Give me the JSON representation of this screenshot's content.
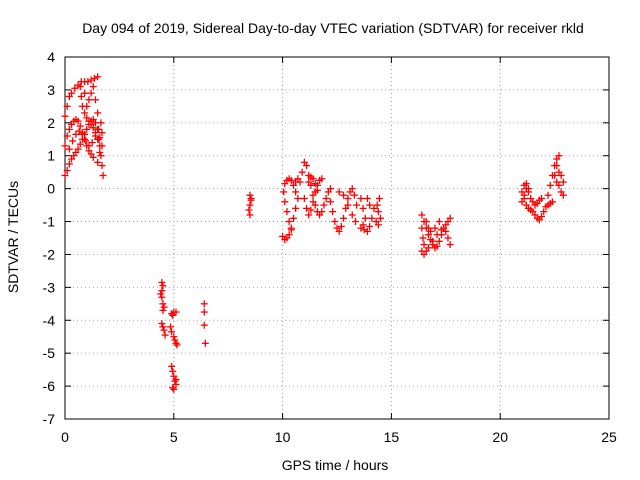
{
  "chart_data": {
    "type": "scatter",
    "title": "Day 094 of 2019, Sidereal Day-to-day VTEC variation (SDTVAR) for receiver rkld",
    "xlabel": "GPS time / hours",
    "ylabel": "SDTVAR / TECUs",
    "xlim": [
      0,
      25
    ],
    "ylim": [
      -7,
      4
    ],
    "xticks": [
      "0",
      "5",
      "10",
      "15",
      "20",
      "25"
    ],
    "yticks": [
      "4",
      "3",
      "2",
      "1",
      "0",
      "-1",
      "-2",
      "-3",
      "-4",
      "-5",
      "-6",
      "-7"
    ],
    "grid": true,
    "marker": "plus",
    "marker_color": "#ff0000",
    "series": [
      {
        "name": "SDTVAR",
        "points": [
          [
            0.0,
            2.2
          ],
          [
            0.1,
            2.5
          ],
          [
            0.2,
            2.8
          ],
          [
            0.3,
            2.9
          ],
          [
            0.45,
            3.05
          ],
          [
            0.6,
            3.15
          ],
          [
            0.75,
            3.25
          ],
          [
            0.9,
            3.25
          ],
          [
            1.05,
            3.25
          ],
          [
            1.2,
            3.3
          ],
          [
            1.35,
            3.35
          ],
          [
            1.5,
            3.4
          ],
          [
            0.7,
            3.1
          ],
          [
            0.75,
            2.8
          ],
          [
            0.8,
            2.5
          ],
          [
            0.9,
            2.3
          ],
          [
            1.0,
            2.15
          ],
          [
            1.1,
            2.05
          ],
          [
            1.2,
            1.95
          ],
          [
            1.3,
            1.85
          ],
          [
            1.4,
            1.7
          ],
          [
            1.5,
            1.5
          ],
          [
            1.6,
            1.3
          ],
          [
            1.65,
            1.0
          ],
          [
            1.7,
            0.7
          ],
          [
            1.75,
            0.4
          ],
          [
            0.0,
            1.3
          ],
          [
            0.1,
            1.6
          ],
          [
            0.2,
            1.8
          ],
          [
            0.3,
            1.95
          ],
          [
            0.4,
            2.05
          ],
          [
            0.5,
            2.1
          ],
          [
            0.6,
            2.05
          ],
          [
            0.7,
            1.9
          ],
          [
            0.8,
            1.7
          ],
          [
            0.9,
            1.5
          ],
          [
            1.0,
            1.3
          ],
          [
            1.1,
            1.15
          ],
          [
            1.2,
            1.05
          ],
          [
            1.3,
            0.95
          ],
          [
            0.0,
            0.4
          ],
          [
            0.1,
            0.55
          ],
          [
            0.2,
            0.75
          ],
          [
            0.3,
            0.9
          ],
          [
            0.4,
            1.0
          ],
          [
            0.5,
            1.1
          ],
          [
            0.6,
            1.2
          ],
          [
            0.7,
            1.35
          ],
          [
            0.8,
            1.5
          ],
          [
            0.9,
            1.65
          ],
          [
            1.0,
            1.8
          ],
          [
            1.1,
            1.95
          ],
          [
            1.2,
            2.05
          ],
          [
            1.3,
            2.1
          ],
          [
            1.4,
            2.0
          ],
          [
            1.5,
            1.8
          ],
          [
            1.6,
            1.55
          ],
          [
            1.7,
            1.3
          ],
          [
            0.2,
            1.2
          ],
          [
            0.35,
            1.45
          ],
          [
            0.5,
            1.65
          ],
          [
            0.65,
            1.75
          ],
          [
            0.8,
            1.65
          ],
          [
            0.95,
            1.45
          ],
          [
            1.1,
            1.3
          ],
          [
            1.25,
            1.4
          ],
          [
            1.4,
            1.6
          ],
          [
            1.55,
            1.8
          ],
          [
            1.65,
            2.0
          ],
          [
            1.7,
            1.7
          ],
          [
            1.6,
            1.1
          ],
          [
            1.5,
            0.8
          ],
          [
            1.0,
            2.5
          ],
          [
            1.1,
            2.7
          ],
          [
            1.2,
            2.9
          ],
          [
            1.3,
            3.1
          ],
          [
            1.4,
            2.7
          ],
          [
            1.5,
            2.3
          ],
          [
            1.55,
            1.5
          ],
          [
            0.9,
            2.9
          ],
          [
            4.45,
            -2.85
          ],
          [
            4.5,
            -2.95
          ],
          [
            4.45,
            -3.1
          ],
          [
            4.4,
            -3.2
          ],
          [
            4.45,
            -3.3
          ],
          [
            4.5,
            -3.5
          ],
          [
            4.55,
            -3.6
          ],
          [
            4.5,
            -3.7
          ],
          [
            4.45,
            -4.1
          ],
          [
            4.5,
            -4.2
          ],
          [
            4.55,
            -4.3
          ],
          [
            4.6,
            -4.45
          ],
          [
            4.9,
            -3.8
          ],
          [
            5.0,
            -3.75
          ],
          [
            5.1,
            -3.75
          ],
          [
            4.95,
            -3.85
          ],
          [
            4.85,
            -4.2
          ],
          [
            4.9,
            -4.35
          ],
          [
            5.0,
            -4.5
          ],
          [
            5.05,
            -4.6
          ],
          [
            5.1,
            -4.7
          ],
          [
            5.15,
            -4.75
          ],
          [
            4.9,
            -5.4
          ],
          [
            4.95,
            -5.55
          ],
          [
            5.0,
            -5.7
          ],
          [
            5.05,
            -5.85
          ],
          [
            5.1,
            -5.95
          ],
          [
            5.0,
            -6.1
          ],
          [
            4.95,
            -6.05
          ],
          [
            5.1,
            -5.8
          ],
          [
            6.4,
            -3.5
          ],
          [
            6.4,
            -3.75
          ],
          [
            6.4,
            -4.15
          ],
          [
            6.45,
            -4.7
          ],
          [
            8.5,
            -0.2
          ],
          [
            8.55,
            -0.35
          ],
          [
            8.5,
            -0.5
          ],
          [
            8.45,
            -0.65
          ],
          [
            8.5,
            -0.8
          ],
          [
            8.55,
            -0.3
          ],
          [
            10.0,
            -1.45
          ],
          [
            10.1,
            -1.55
          ],
          [
            10.2,
            -1.5
          ],
          [
            10.3,
            -1.4
          ],
          [
            10.4,
            -1.2
          ],
          [
            10.5,
            -0.9
          ],
          [
            10.6,
            -0.6
          ],
          [
            10.7,
            -0.3
          ],
          [
            10.6,
            -0.1
          ],
          [
            10.5,
            0.1
          ],
          [
            10.4,
            0.25
          ],
          [
            10.3,
            0.3
          ],
          [
            10.2,
            0.25
          ],
          [
            10.1,
            0.15
          ],
          [
            10.05,
            -0.1
          ],
          [
            10.1,
            -0.4
          ],
          [
            10.2,
            -0.7
          ],
          [
            10.3,
            -1.0
          ],
          [
            10.4,
            -1.25
          ],
          [
            10.6,
            0.2
          ],
          [
            10.7,
            0.3
          ],
          [
            10.8,
            0.2
          ],
          [
            10.9,
            0.5
          ],
          [
            11.0,
            0.8
          ],
          [
            11.1,
            0.7
          ],
          [
            11.2,
            0.4
          ],
          [
            11.3,
            0.1
          ],
          [
            11.4,
            -0.2
          ],
          [
            11.5,
            -0.5
          ],
          [
            11.6,
            -0.7
          ],
          [
            11.7,
            -0.8
          ],
          [
            11.8,
            -0.7
          ],
          [
            11.9,
            -0.5
          ],
          [
            12.0,
            -0.3
          ],
          [
            12.1,
            -0.1
          ],
          [
            12.2,
            0.0
          ],
          [
            11.0,
            -0.3
          ],
          [
            11.1,
            -0.6
          ],
          [
            11.2,
            -0.8
          ],
          [
            11.3,
            -0.65
          ],
          [
            11.4,
            -0.4
          ],
          [
            11.5,
            -0.1
          ],
          [
            11.6,
            0.1
          ],
          [
            11.7,
            0.25
          ],
          [
            11.8,
            0.3
          ],
          [
            11.2,
            0.2
          ],
          [
            11.3,
            0.35
          ],
          [
            11.4,
            0.3
          ],
          [
            11.5,
            0.15
          ],
          [
            11.6,
            -0.05
          ],
          [
            12.2,
            -0.4
          ],
          [
            12.3,
            -0.7
          ],
          [
            12.4,
            -1.0
          ],
          [
            12.5,
            -1.2
          ],
          [
            12.6,
            -1.3
          ],
          [
            12.7,
            -1.15
          ],
          [
            12.8,
            -0.9
          ],
          [
            12.9,
            -0.6
          ],
          [
            13.0,
            -0.3
          ],
          [
            13.1,
            -0.1
          ],
          [
            13.2,
            0.0
          ],
          [
            13.3,
            -0.2
          ],
          [
            13.4,
            -0.5
          ],
          [
            12.6,
            -0.1
          ],
          [
            12.8,
            -0.2
          ],
          [
            13.0,
            -0.5
          ],
          [
            13.2,
            -0.8
          ],
          [
            13.35,
            -1.0
          ],
          [
            13.6,
            -0.3
          ],
          [
            13.7,
            -0.6
          ],
          [
            13.8,
            -0.9
          ],
          [
            13.7,
            -1.1
          ],
          [
            13.6,
            -1.2
          ],
          [
            13.75,
            -1.25
          ],
          [
            13.9,
            -1.3
          ],
          [
            14.0,
            -1.15
          ],
          [
            14.1,
            -0.9
          ],
          [
            14.2,
            -0.6
          ],
          [
            13.9,
            -0.3
          ],
          [
            14.0,
            -0.5
          ],
          [
            14.3,
            -1.0
          ],
          [
            14.4,
            -1.1
          ],
          [
            14.5,
            -0.9
          ],
          [
            14.4,
            -0.7
          ],
          [
            14.35,
            -0.5
          ],
          [
            14.45,
            -0.3
          ],
          [
            16.4,
            -0.8
          ],
          [
            16.5,
            -1.0
          ],
          [
            16.6,
            -1.2
          ],
          [
            16.7,
            -1.4
          ],
          [
            16.8,
            -1.55
          ],
          [
            16.9,
            -1.7
          ],
          [
            17.0,
            -1.8
          ],
          [
            17.1,
            -1.75
          ],
          [
            17.2,
            -1.6
          ],
          [
            17.3,
            -1.4
          ],
          [
            17.4,
            -1.2
          ],
          [
            17.5,
            -1.1
          ],
          [
            17.6,
            -1.0
          ],
          [
            17.7,
            -0.9
          ],
          [
            16.4,
            -1.2
          ],
          [
            16.45,
            -1.5
          ],
          [
            16.5,
            -1.7
          ],
          [
            16.4,
            -1.9
          ],
          [
            16.5,
            -2.0
          ],
          [
            16.6,
            -1.9
          ],
          [
            16.7,
            -1.8
          ],
          [
            16.9,
            -1.6
          ],
          [
            17.1,
            -1.4
          ],
          [
            17.3,
            -1.25
          ],
          [
            17.5,
            -1.3
          ],
          [
            17.6,
            -1.5
          ],
          [
            17.7,
            -1.7
          ],
          [
            16.6,
            -1.0
          ],
          [
            16.7,
            -1.2
          ],
          [
            16.8,
            -1.3
          ],
          [
            17.0,
            -1.2
          ],
          [
            17.2,
            -1.0
          ],
          [
            21.0,
            -0.1
          ],
          [
            21.1,
            -0.3
          ],
          [
            21.2,
            -0.5
          ],
          [
            21.3,
            -0.6
          ],
          [
            21.4,
            -0.65
          ],
          [
            21.5,
            -0.7
          ],
          [
            21.6,
            -0.8
          ],
          [
            21.7,
            -0.9
          ],
          [
            21.8,
            -0.95
          ],
          [
            21.9,
            -0.85
          ],
          [
            22.0,
            -0.7
          ],
          [
            22.1,
            -0.55
          ],
          [
            22.2,
            -0.5
          ],
          [
            22.3,
            -0.45
          ],
          [
            22.4,
            -0.4
          ],
          [
            21.0,
            -0.4
          ],
          [
            21.1,
            -0.2
          ],
          [
            21.2,
            0.0
          ],
          [
            21.3,
            -0.1
          ],
          [
            21.4,
            -0.3
          ],
          [
            21.5,
            -0.4
          ],
          [
            21.6,
            -0.5
          ],
          [
            21.7,
            -0.45
          ],
          [
            21.8,
            -0.35
          ],
          [
            21.9,
            -0.3
          ],
          [
            21.1,
            0.1
          ],
          [
            21.2,
            0.15
          ],
          [
            21.3,
            0.0
          ],
          [
            22.2,
            -0.2
          ],
          [
            22.3,
            0.1
          ],
          [
            22.4,
            0.4
          ],
          [
            22.5,
            0.7
          ],
          [
            22.6,
            0.9
          ],
          [
            22.7,
            1.0
          ],
          [
            22.6,
            0.7
          ],
          [
            22.5,
            0.4
          ],
          [
            22.6,
            0.2
          ],
          [
            22.7,
            0.1
          ],
          [
            22.8,
            -0.1
          ],
          [
            22.9,
            -0.2
          ],
          [
            22.9,
            0.2
          ],
          [
            22.8,
            0.4
          ],
          [
            22.7,
            0.5
          ]
        ]
      }
    ]
  }
}
